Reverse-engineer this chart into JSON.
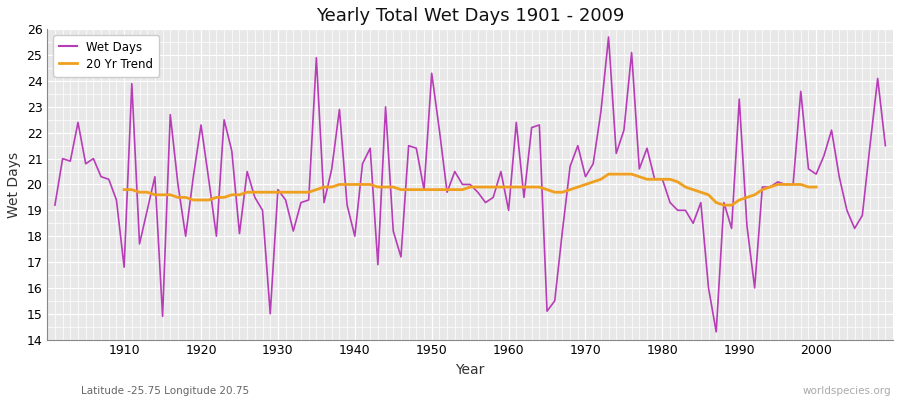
{
  "title": "Yearly Total Wet Days 1901 - 2009",
  "xlabel": "Year",
  "ylabel": "Wet Days",
  "subtitle": "Latitude -25.75 Longitude 20.75",
  "watermark": "worldspecies.org",
  "ylim": [
    14,
    26
  ],
  "yticks": [
    14,
    15,
    16,
    17,
    18,
    19,
    20,
    21,
    22,
    23,
    24,
    25,
    26
  ],
  "xlim": [
    1901,
    2009
  ],
  "wet_days_color": "#b83cb8",
  "trend_color": "#f0a020",
  "background_color": "#ffffff",
  "plot_bg_color": "#e8e8e8",
  "years": [
    1901,
    1902,
    1903,
    1904,
    1905,
    1906,
    1907,
    1908,
    1909,
    1910,
    1911,
    1912,
    1913,
    1914,
    1915,
    1916,
    1917,
    1918,
    1919,
    1920,
    1921,
    1922,
    1923,
    1924,
    1925,
    1926,
    1927,
    1928,
    1929,
    1930,
    1931,
    1932,
    1933,
    1934,
    1935,
    1936,
    1937,
    1938,
    1939,
    1940,
    1941,
    1942,
    1943,
    1944,
    1945,
    1946,
    1947,
    1948,
    1949,
    1950,
    1951,
    1952,
    1953,
    1954,
    1955,
    1956,
    1957,
    1958,
    1959,
    1960,
    1961,
    1962,
    1963,
    1964,
    1965,
    1966,
    1967,
    1968,
    1969,
    1970,
    1971,
    1972,
    1973,
    1974,
    1975,
    1976,
    1977,
    1978,
    1979,
    1980,
    1981,
    1982,
    1983,
    1984,
    1985,
    1986,
    1987,
    1988,
    1989,
    1990,
    1991,
    1992,
    1993,
    1994,
    1995,
    1996,
    1997,
    1998,
    1999,
    2000,
    2001,
    2002,
    2003,
    2004,
    2005,
    2006,
    2007,
    2008,
    2009
  ],
  "wet_days": [
    19.2,
    21.0,
    20.9,
    22.4,
    20.8,
    21.0,
    20.3,
    20.2,
    19.4,
    16.8,
    23.9,
    17.7,
    19.0,
    20.3,
    14.9,
    22.7,
    20.0,
    18.0,
    20.3,
    22.3,
    20.2,
    18.0,
    22.5,
    21.3,
    18.1,
    20.5,
    19.5,
    19.0,
    15.0,
    19.8,
    19.4,
    18.2,
    19.3,
    19.4,
    24.9,
    19.3,
    20.6,
    22.9,
    19.2,
    18.0,
    20.8,
    21.4,
    16.9,
    23.0,
    18.2,
    17.2,
    21.5,
    21.4,
    19.8,
    24.3,
    22.1,
    19.7,
    20.5,
    20.0,
    20.0,
    19.7,
    19.3,
    19.5,
    20.5,
    19.0,
    22.4,
    19.5,
    22.2,
    22.3,
    15.1,
    15.5,
    18.2,
    20.7,
    21.5,
    20.3,
    20.8,
    22.8,
    25.7,
    21.2,
    22.1,
    25.1,
    20.6,
    21.4,
    20.2,
    20.2,
    19.3,
    19.0,
    19.0,
    18.5,
    19.3,
    16.0,
    14.3,
    19.3,
    18.3,
    23.3,
    18.4,
    16.0,
    19.9,
    19.9,
    20.1,
    20.0,
    20.0,
    23.6,
    20.6,
    20.4,
    21.1,
    22.1,
    20.3,
    19.0,
    18.3,
    18.8,
    21.5,
    24.1,
    21.5
  ],
  "trend": [
    null,
    null,
    null,
    null,
    null,
    null,
    null,
    null,
    null,
    19.8,
    19.8,
    19.7,
    19.7,
    19.6,
    19.6,
    19.6,
    19.5,
    19.5,
    19.4,
    19.4,
    19.4,
    19.5,
    19.5,
    19.6,
    19.6,
    19.7,
    19.7,
    19.7,
    19.7,
    19.7,
    19.7,
    19.7,
    19.7,
    19.7,
    19.8,
    19.9,
    19.9,
    20.0,
    20.0,
    20.0,
    20.0,
    20.0,
    19.9,
    19.9,
    19.9,
    19.8,
    19.8,
    19.8,
    19.8,
    19.8,
    19.8,
    19.8,
    19.8,
    19.8,
    19.9,
    19.9,
    19.9,
    19.9,
    19.9,
    19.9,
    19.9,
    19.9,
    19.9,
    19.9,
    19.8,
    19.7,
    19.7,
    19.8,
    19.9,
    20.0,
    20.1,
    20.2,
    20.4,
    20.4,
    20.4,
    20.4,
    20.3,
    20.2,
    20.2,
    20.2,
    20.2,
    20.1,
    19.9,
    19.8,
    19.7,
    19.6,
    19.3,
    19.2,
    19.2,
    19.4,
    19.5,
    19.6,
    19.8,
    19.9,
    20.0,
    20.0,
    20.0,
    20.0,
    19.9,
    19.9,
    null,
    null,
    null,
    null,
    null,
    null,
    null,
    null,
    null
  ]
}
